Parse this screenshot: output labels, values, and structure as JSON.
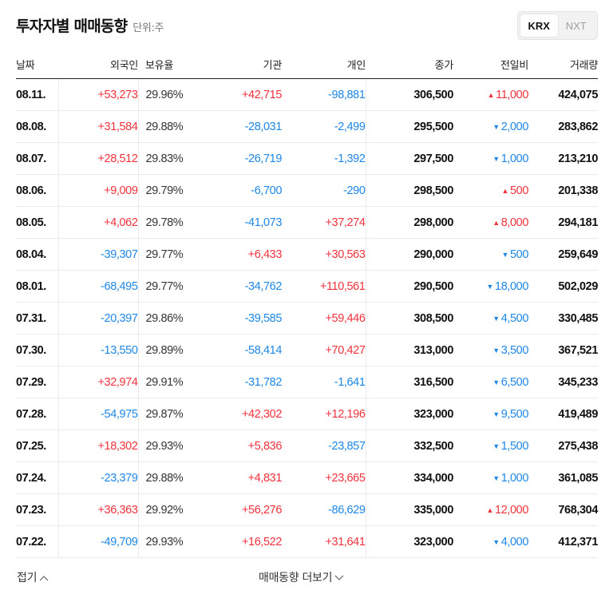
{
  "header": {
    "title": "투자자별 매매동향",
    "unit": "단위:주"
  },
  "market_tabs": [
    {
      "label": "KRX",
      "active": true
    },
    {
      "label": "NXT",
      "active": false
    }
  ],
  "columns": [
    "날짜",
    "외국인",
    "보유율",
    "기관",
    "개인",
    "종가",
    "전일비",
    "거래량"
  ],
  "rows": [
    {
      "date": "08.11.",
      "foreign": "+53,273",
      "foreign_dir": "up",
      "holding": "29.96%",
      "inst": "+42,715",
      "inst_dir": "up",
      "indiv": "-98,881",
      "indiv_dir": "down",
      "close": "306,500",
      "change": "11,000",
      "change_dir": "up",
      "volume": "424,075"
    },
    {
      "date": "08.08.",
      "foreign": "+31,584",
      "foreign_dir": "up",
      "holding": "29.88%",
      "inst": "-28,031",
      "inst_dir": "down",
      "indiv": "-2,499",
      "indiv_dir": "down",
      "close": "295,500",
      "change": "2,000",
      "change_dir": "down",
      "volume": "283,862"
    },
    {
      "date": "08.07.",
      "foreign": "+28,512",
      "foreign_dir": "up",
      "holding": "29.83%",
      "inst": "-26,719",
      "inst_dir": "down",
      "indiv": "-1,392",
      "indiv_dir": "down",
      "close": "297,500",
      "change": "1,000",
      "change_dir": "down",
      "volume": "213,210"
    },
    {
      "date": "08.06.",
      "foreign": "+9,009",
      "foreign_dir": "up",
      "holding": "29.79%",
      "inst": "-6,700",
      "inst_dir": "down",
      "indiv": "-290",
      "indiv_dir": "down",
      "close": "298,500",
      "change": "500",
      "change_dir": "up",
      "volume": "201,338"
    },
    {
      "date": "08.05.",
      "foreign": "+4,062",
      "foreign_dir": "up",
      "holding": "29.78%",
      "inst": "-41,073",
      "inst_dir": "down",
      "indiv": "+37,274",
      "indiv_dir": "up",
      "close": "298,000",
      "change": "8,000",
      "change_dir": "up",
      "volume": "294,181"
    },
    {
      "date": "08.04.",
      "foreign": "-39,307",
      "foreign_dir": "down",
      "holding": "29.77%",
      "inst": "+6,433",
      "inst_dir": "up",
      "indiv": "+30,563",
      "indiv_dir": "up",
      "close": "290,000",
      "change": "500",
      "change_dir": "down",
      "volume": "259,649"
    },
    {
      "date": "08.01.",
      "foreign": "-68,495",
      "foreign_dir": "down",
      "holding": "29.77%",
      "inst": "-34,762",
      "inst_dir": "down",
      "indiv": "+110,561",
      "indiv_dir": "up",
      "close": "290,500",
      "change": "18,000",
      "change_dir": "down",
      "volume": "502,029"
    },
    {
      "date": "07.31.",
      "foreign": "-20,397",
      "foreign_dir": "down",
      "holding": "29.86%",
      "inst": "-39,585",
      "inst_dir": "down",
      "indiv": "+59,446",
      "indiv_dir": "up",
      "close": "308,500",
      "change": "4,500",
      "change_dir": "down",
      "volume": "330,485"
    },
    {
      "date": "07.30.",
      "foreign": "-13,550",
      "foreign_dir": "down",
      "holding": "29.89%",
      "inst": "-58,414",
      "inst_dir": "down",
      "indiv": "+70,427",
      "indiv_dir": "up",
      "close": "313,000",
      "change": "3,500",
      "change_dir": "down",
      "volume": "367,521"
    },
    {
      "date": "07.29.",
      "foreign": "+32,974",
      "foreign_dir": "up",
      "holding": "29.91%",
      "inst": "-31,782",
      "inst_dir": "down",
      "indiv": "-1,641",
      "indiv_dir": "down",
      "close": "316,500",
      "change": "6,500",
      "change_dir": "down",
      "volume": "345,233"
    },
    {
      "date": "07.28.",
      "foreign": "-54,975",
      "foreign_dir": "down",
      "holding": "29.87%",
      "inst": "+42,302",
      "inst_dir": "up",
      "indiv": "+12,196",
      "indiv_dir": "up",
      "close": "323,000",
      "change": "9,500",
      "change_dir": "down",
      "volume": "419,489"
    },
    {
      "date": "07.25.",
      "foreign": "+18,302",
      "foreign_dir": "up",
      "holding": "29.93%",
      "inst": "+5,836",
      "inst_dir": "up",
      "indiv": "-23,857",
      "indiv_dir": "down",
      "close": "332,500",
      "change": "1,500",
      "change_dir": "down",
      "volume": "275,438"
    },
    {
      "date": "07.24.",
      "foreign": "-23,379",
      "foreign_dir": "down",
      "holding": "29.88%",
      "inst": "+4,831",
      "inst_dir": "up",
      "indiv": "+23,665",
      "indiv_dir": "up",
      "close": "334,000",
      "change": "1,000",
      "change_dir": "down",
      "volume": "361,085"
    },
    {
      "date": "07.23.",
      "foreign": "+36,363",
      "foreign_dir": "up",
      "holding": "29.92%",
      "inst": "+56,276",
      "inst_dir": "up",
      "indiv": "-86,629",
      "indiv_dir": "down",
      "close": "335,000",
      "change": "12,000",
      "change_dir": "up",
      "volume": "768,304"
    },
    {
      "date": "07.22.",
      "foreign": "-49,709",
      "foreign_dir": "down",
      "holding": "29.93%",
      "inst": "+16,522",
      "inst_dir": "up",
      "indiv": "+31,641",
      "indiv_dir": "up",
      "close": "323,000",
      "change": "4,000",
      "change_dir": "down",
      "volume": "412,371"
    }
  ],
  "footer": {
    "fold_label": "접기",
    "more_label": "매매동향 더보기"
  },
  "colors": {
    "up": "#f0323c",
    "down": "#1e87e6"
  },
  "icons": {
    "fold": "chevron-up-icon",
    "more": "chevron-down-icon",
    "rise": "triangle-up-icon",
    "fall": "triangle-down-icon"
  }
}
